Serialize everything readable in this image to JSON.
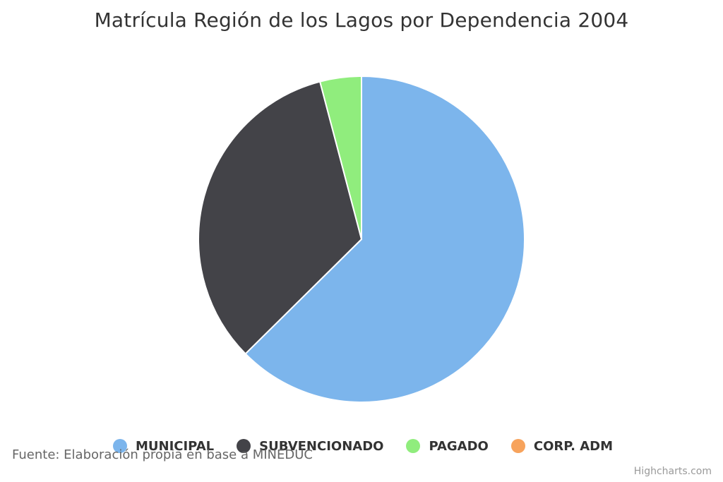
{
  "chart_data": {
    "type": "pie",
    "title": "Matrícula Región de los Lagos por Dependencia 2004",
    "source": "Fuente: Elaboración propia en base a MINEDUC",
    "credits": "Highcharts.com",
    "legend_position": "bottom",
    "slices": [
      {
        "name": "MUNICIPAL",
        "value": 62.6,
        "color": "#7cb5ec"
      },
      {
        "name": "SUBVENCIONADO",
        "value": 33.3,
        "color": "#434348"
      },
      {
        "name": "PAGADO",
        "value": 4.1,
        "color": "#90ed7d"
      },
      {
        "name": "CORP. ADM",
        "value": 0.0,
        "color": "#f7a35c"
      }
    ]
  }
}
